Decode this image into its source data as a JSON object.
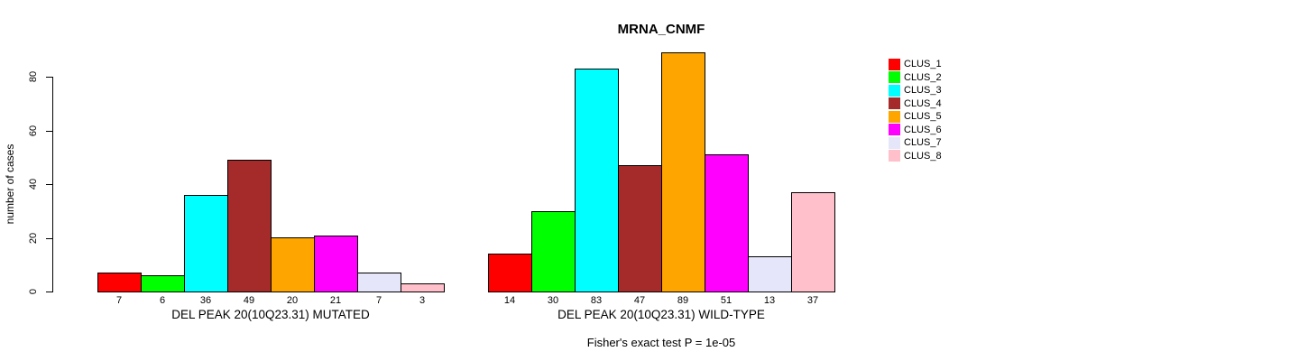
{
  "chart": {
    "title": "MRNA_CNMF",
    "ylabel": "number of cases",
    "footer": "Fisher's exact test P = 1e-05"
  },
  "chart_data": {
    "type": "bar",
    "title": "MRNA_CNMF",
    "xlabel": "",
    "ylabel": "number of cases",
    "ylim": [
      0,
      89
    ],
    "yticks": [
      0,
      20,
      40,
      60,
      80
    ],
    "grid": false,
    "legend_position": "right",
    "annotation": "Fisher's exact test P = 1e-05",
    "categories": [
      "DEL PEAK 20(10Q23.31) MUTATED",
      "DEL PEAK 20(10Q23.31) WILD-TYPE"
    ],
    "series": [
      {
        "name": "CLUS_1",
        "color": "#FF0000",
        "values": [
          7,
          14
        ]
      },
      {
        "name": "CLUS_2",
        "color": "#00FF00",
        "values": [
          6,
          30
        ]
      },
      {
        "name": "CLUS_3",
        "color": "#00FFFF",
        "values": [
          36,
          83
        ]
      },
      {
        "name": "CLUS_4",
        "color": "#A52A2A",
        "values": [
          49,
          47
        ]
      },
      {
        "name": "CLUS_5",
        "color": "#FFA500",
        "values": [
          20,
          89
        ]
      },
      {
        "name": "CLUS_6",
        "color": "#FF00FF",
        "values": [
          21,
          51
        ]
      },
      {
        "name": "CLUS_7",
        "color": "#E6E6FA",
        "values": [
          7,
          13
        ]
      },
      {
        "name": "CLUS_8",
        "color": "#FFC0CB",
        "values": [
          3,
          37
        ]
      }
    ]
  }
}
